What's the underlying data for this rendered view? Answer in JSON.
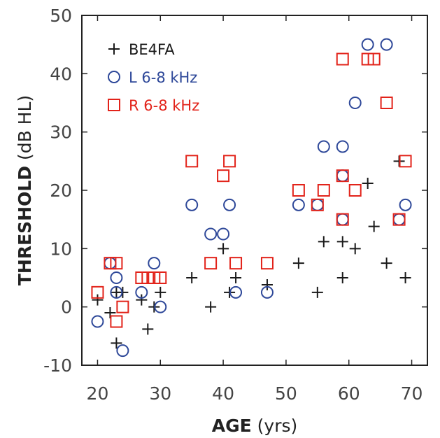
{
  "chart_data": {
    "type": "scatter",
    "xlabel_bold": "AGE",
    "xlabel_unit": "(yrs)",
    "ylabel_bold": "THRESHOLD",
    "ylabel_unit": "(dB HL)",
    "xlim": [
      17.5,
      72.5
    ],
    "ylim": [
      -10,
      50
    ],
    "xticks": [
      20,
      30,
      40,
      50,
      60,
      70
    ],
    "yticks": [
      -10,
      0,
      10,
      20,
      30,
      40,
      50
    ],
    "grid": false,
    "legend_position": "top-left",
    "series": [
      {
        "name": "BE4FA",
        "marker": "plus",
        "color": "#1a1a1a",
        "points": [
          [
            20,
            1.2
          ],
          [
            22,
            -1
          ],
          [
            23,
            -6.2
          ],
          [
            23,
            2.5
          ],
          [
            24,
            2.5
          ],
          [
            27,
            1.2
          ],
          [
            28,
            -3.8
          ],
          [
            29,
            0
          ],
          [
            30,
            2.5
          ],
          [
            35,
            5
          ],
          [
            38,
            0
          ],
          [
            40,
            10
          ],
          [
            41,
            2.5
          ],
          [
            42,
            5
          ],
          [
            47,
            3.8
          ],
          [
            52,
            7.5
          ],
          [
            55,
            2.5
          ],
          [
            56,
            11.2
          ],
          [
            59,
            11.2
          ],
          [
            59,
            5
          ],
          [
            61,
            10
          ],
          [
            63,
            21.2
          ],
          [
            64,
            13.8
          ],
          [
            66,
            7.5
          ],
          [
            68,
            25
          ],
          [
            69,
            5
          ]
        ]
      },
      {
        "name": "L 6-8 kHz",
        "marker": "circle",
        "color": "#2e4899",
        "points": [
          [
            20,
            -2.5
          ],
          [
            22,
            7.5
          ],
          [
            23,
            5
          ],
          [
            23,
            2.5
          ],
          [
            24,
            -7.5
          ],
          [
            27,
            2.5
          ],
          [
            29,
            7.5
          ],
          [
            30,
            0
          ],
          [
            35,
            17.5
          ],
          [
            38,
            12.5
          ],
          [
            40,
            12.5
          ],
          [
            41,
            17.5
          ],
          [
            42,
            2.5
          ],
          [
            47,
            2.5
          ],
          [
            52,
            17.5
          ],
          [
            55,
            17.5
          ],
          [
            56,
            27.5
          ],
          [
            59,
            27.5
          ],
          [
            59,
            22.5
          ],
          [
            59,
            15
          ],
          [
            61,
            35
          ],
          [
            63,
            45
          ],
          [
            66,
            45
          ],
          [
            68,
            15
          ],
          [
            69,
            17.5
          ]
        ]
      },
      {
        "name": "R 6-8 kHz",
        "marker": "square",
        "color": "#e2231a",
        "points": [
          [
            20,
            2.5
          ],
          [
            22,
            7.5
          ],
          [
            23,
            7.5
          ],
          [
            23,
            -2.5
          ],
          [
            24,
            0
          ],
          [
            27,
            5
          ],
          [
            28,
            5
          ],
          [
            29,
            5
          ],
          [
            30,
            5
          ],
          [
            35,
            25
          ],
          [
            38,
            7.5
          ],
          [
            40,
            22.5
          ],
          [
            41,
            25
          ],
          [
            42,
            7.5
          ],
          [
            47,
            7.5
          ],
          [
            52,
            20
          ],
          [
            55,
            17.5
          ],
          [
            56,
            20
          ],
          [
            59,
            42.5
          ],
          [
            59,
            22.5
          ],
          [
            59,
            15
          ],
          [
            61,
            20
          ],
          [
            63,
            42.5
          ],
          [
            64,
            42.5
          ],
          [
            66,
            35
          ],
          [
            68,
            15
          ],
          [
            69,
            25
          ]
        ]
      }
    ]
  }
}
